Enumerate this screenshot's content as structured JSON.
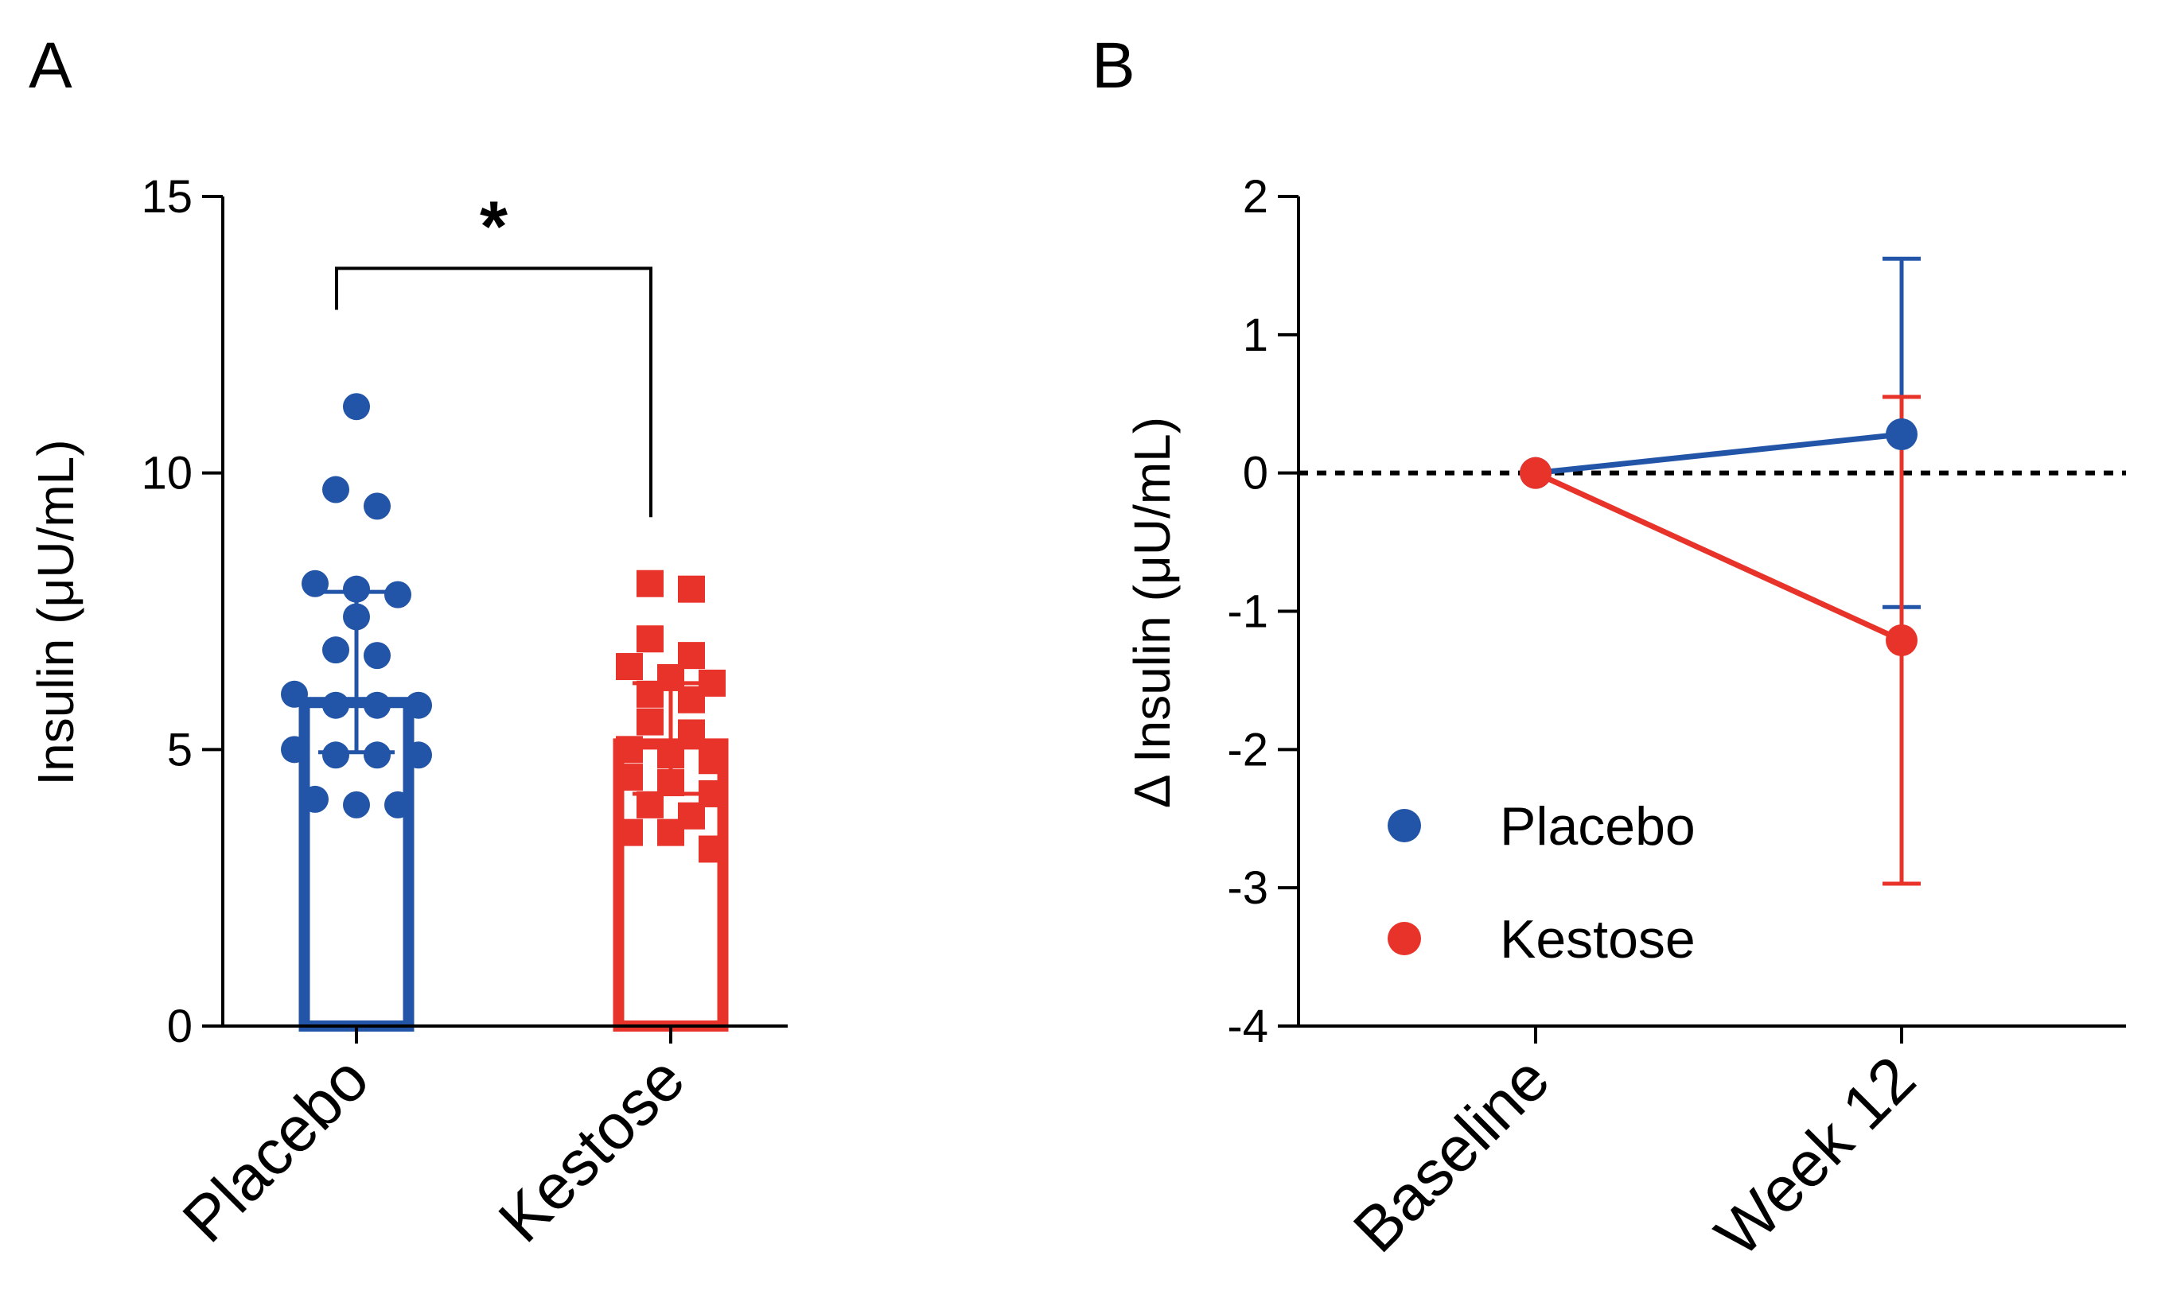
{
  "panels": {
    "a": {
      "letter": "A"
    },
    "b": {
      "letter": "B"
    }
  },
  "chart_data": [
    {
      "type": "bar",
      "title": "",
      "categories": [
        "Placebo",
        "Kestose"
      ],
      "ylabel": "Insulin (μU/mL)",
      "ylim": [
        0,
        15
      ],
      "yticks": [
        0,
        5,
        10,
        15
      ],
      "grid": false,
      "series": [
        {
          "name": "Placebo",
          "color": "#2255a8",
          "marker": "circle",
          "mean": 5.85,
          "error_low": 4.95,
          "error_high": 7.85,
          "points": [
            11.2,
            9.7,
            9.4,
            8.0,
            7.9,
            7.8,
            7.4,
            6.8,
            6.7,
            6.0,
            5.8,
            5.8,
            5.8,
            5.0,
            4.9,
            4.9,
            4.9,
            4.1,
            4.0,
            4.0
          ]
        },
        {
          "name": "Kestose",
          "color": "#e8332a",
          "marker": "square",
          "mean": 5.1,
          "error_low": 4.2,
          "error_high": 6.2,
          "points": [
            8.0,
            7.9,
            7.0,
            6.7,
            6.5,
            6.3,
            6.2,
            6.0,
            5.9,
            5.5,
            5.3,
            5.0,
            4.9,
            4.8,
            4.5,
            4.4,
            4.2,
            4.0,
            3.8,
            3.5,
            3.5,
            3.2
          ]
        }
      ],
      "annotations": [
        {
          "text": "*",
          "between": [
            "Placebo",
            "Kestose"
          ],
          "bracket_y": 13.7
        }
      ]
    },
    {
      "type": "line",
      "title": "",
      "x": [
        "Baseline",
        "Week 12"
      ],
      "ylabel": "Δ Insulin (μU/mL)",
      "ylim": [
        -4,
        2
      ],
      "yticks": [
        2,
        1,
        0,
        -1,
        -2,
        -3,
        -4
      ],
      "ytick_labels": [
        "2",
        "1",
        "0",
        "-1",
        "-2",
        "-3",
        "-4"
      ],
      "reference_line": 0,
      "grid": false,
      "legend_position": "lower-left",
      "series": [
        {
          "name": "Placebo",
          "color": "#2255a8",
          "values": [
            0,
            0.28
          ],
          "error_low": [
            null,
            -0.97
          ],
          "error_high": [
            null,
            1.55
          ]
        },
        {
          "name": "Kestose",
          "color": "#e8332a",
          "values": [
            0,
            -1.21
          ],
          "error_low": [
            null,
            -2.97
          ],
          "error_high": [
            null,
            0.55
          ]
        }
      ]
    }
  ]
}
